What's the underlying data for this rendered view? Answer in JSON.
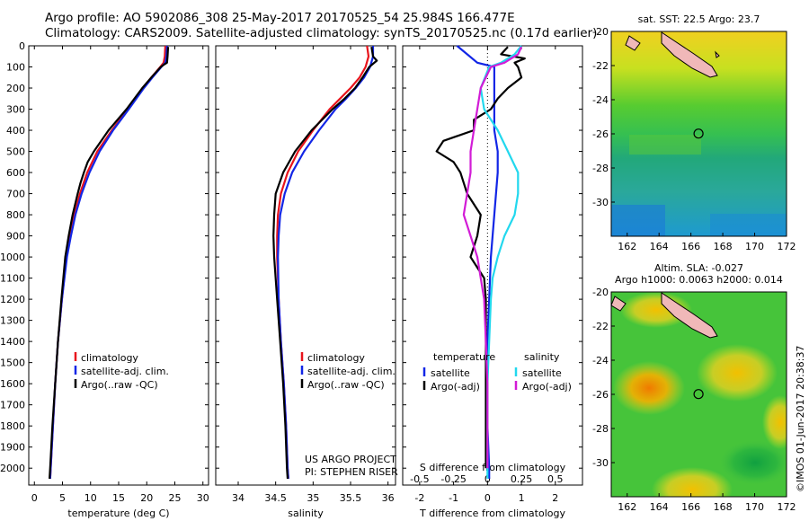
{
  "header": {
    "line1": "Argo profile: AO 5902086_308 25-May-2017 20170525_54 25.984S 166.477E",
    "line2": "Climatology: CARS2009. Satellite-adjusted climatology: synTS_20170525.nc (0.17d earlier)"
  },
  "stamp": "©IMOS 01-Jun-2017 20:38:37",
  "colors": {
    "climatology": "#e8141c",
    "satellite": "#1226e6",
    "argo": "#000000",
    "sat_salinity": "#22d8ee",
    "argo_salinity": "#d21cd6"
  },
  "chart_data": [
    {
      "type": "line",
      "id": "temperature",
      "xlabel": "temperature (deg C)",
      "ylabel": "",
      "xlim": [
        -1,
        31
      ],
      "ylim": [
        2080,
        0
      ],
      "xticks": [
        0,
        5,
        10,
        15,
        20,
        25,
        30
      ],
      "yticks": [
        0,
        100,
        200,
        300,
        400,
        500,
        600,
        700,
        800,
        900,
        1000,
        1100,
        1200,
        1300,
        1400,
        1500,
        1600,
        1700,
        1800,
        1900,
        2000
      ],
      "legend": [
        "climatology",
        "satellite-adj. clim.",
        "Argo(..raw -QC)"
      ],
      "legend_colors": [
        "#e8141c",
        "#1226e6",
        "#000000"
      ],
      "series": [
        {
          "name": "climatology",
          "color": "#e8141c",
          "pressure": [
            0,
            50,
            80,
            100,
            150,
            200,
            300,
            400,
            500,
            600,
            700,
            800,
            900,
            1000,
            1200,
            1400,
            1600,
            1800,
            2000,
            2050
          ],
          "values": [
            23.3,
            23.2,
            23.0,
            22.4,
            20.8,
            19.3,
            16.6,
            13.8,
            11.2,
            9.4,
            8.1,
            7.1,
            6.3,
            5.7,
            4.9,
            4.2,
            3.7,
            3.3,
            2.9,
            2.8
          ]
        },
        {
          "name": "satellite-adj. clim.",
          "color": "#1226e6",
          "pressure": [
            0,
            50,
            80,
            100,
            150,
            200,
            300,
            400,
            500,
            600,
            700,
            800,
            900,
            1000,
            1200,
            1400,
            1600,
            1800,
            2000,
            2050
          ],
          "values": [
            23.6,
            23.5,
            23.3,
            22.6,
            21.0,
            19.5,
            16.8,
            14.0,
            11.6,
            9.8,
            8.4,
            7.3,
            6.5,
            5.8,
            4.9,
            4.2,
            3.7,
            3.3,
            2.9,
            2.8
          ]
        },
        {
          "name": "Argo(..raw -QC)",
          "color": "#000000",
          "pressure": [
            5,
            50,
            80,
            90,
            100,
            150,
            200,
            300,
            400,
            500,
            550,
            600,
            650,
            700,
            800,
            900,
            1000,
            1200,
            1400,
            1600,
            1800,
            2000,
            2050
          ],
          "values": [
            23.8,
            23.7,
            23.6,
            23.0,
            22.5,
            20.8,
            19.2,
            16.4,
            13.2,
            10.6,
            9.5,
            8.8,
            8.2,
            7.7,
            6.8,
            6.1,
            5.5,
            4.8,
            4.2,
            3.7,
            3.2,
            2.8,
            2.7
          ]
        }
      ]
    },
    {
      "type": "line",
      "id": "salinity",
      "xlabel": "salinity",
      "ylabel": "",
      "xlim": [
        33.7,
        36.1
      ],
      "ylim": [
        2080,
        0
      ],
      "xticks": [
        34,
        34.5,
        35,
        35.5,
        36
      ],
      "legend": [
        "climatology",
        "satellite-adj. clim.",
        "Argo(..raw -QC)"
      ],
      "legend_colors": [
        "#e8141c",
        "#1226e6",
        "#000000"
      ],
      "annotation": [
        "US ARGO PROJECT",
        "PI: STEPHEN RISER"
      ],
      "series": [
        {
          "name": "climatology",
          "color": "#e8141c",
          "pressure": [
            0,
            50,
            100,
            150,
            200,
            250,
            300,
            400,
            500,
            600,
            700,
            800,
            900,
            1000,
            1200,
            1400,
            1600,
            1800,
            2000,
            2050
          ],
          "values": [
            35.72,
            35.74,
            35.7,
            35.62,
            35.5,
            35.36,
            35.22,
            35.0,
            34.8,
            34.66,
            34.57,
            34.53,
            34.52,
            34.52,
            34.54,
            34.57,
            34.61,
            34.64,
            34.66,
            34.67
          ]
        },
        {
          "name": "satellite-adj. clim.",
          "color": "#1226e6",
          "pressure": [
            0,
            50,
            100,
            150,
            200,
            250,
            300,
            400,
            500,
            600,
            700,
            800,
            900,
            1000,
            1200,
            1400,
            1600,
            1800,
            2000,
            2050
          ],
          "values": [
            35.8,
            35.8,
            35.76,
            35.68,
            35.57,
            35.44,
            35.3,
            35.08,
            34.88,
            34.72,
            34.62,
            34.56,
            34.54,
            34.53,
            34.54,
            34.57,
            34.61,
            34.64,
            34.66,
            34.67
          ]
        },
        {
          "name": "Argo(..raw -QC)",
          "color": "#000000",
          "pressure": [
            5,
            50,
            70,
            100,
            150,
            200,
            250,
            300,
            400,
            500,
            600,
            700,
            800,
            900,
            1000,
            1200,
            1400,
            1600,
            1800,
            2000,
            2050
          ],
          "values": [
            35.78,
            35.8,
            35.85,
            35.75,
            35.66,
            35.56,
            35.42,
            35.26,
            34.98,
            34.76,
            34.6,
            34.5,
            34.48,
            34.47,
            34.48,
            34.52,
            34.56,
            34.6,
            34.63,
            34.65,
            34.66
          ]
        }
      ]
    },
    {
      "type": "line",
      "id": "difference",
      "xlabel": "T difference from climatology",
      "xlabel2": "S difference from climatology",
      "xlim": [
        -2.5,
        2.8
      ],
      "ylim": [
        2080,
        0
      ],
      "xticks": [
        -2,
        -1,
        0,
        1,
        2
      ],
      "xtick_labels": [
        "-2",
        "-1",
        "0",
        "1",
        "2"
      ],
      "xticks2": [
        -2,
        -1,
        0,
        1,
        2
      ],
      "xtick2_labels": [
        "-0.5",
        "-0.25",
        "0",
        "0.25",
        "0.5"
      ],
      "legend_left_title": "temperature",
      "legend_right_title": "salinity",
      "legend": [
        "satellite",
        "Argo(-adj)",
        "satellite",
        "Argo(-adj)"
      ],
      "legend_colors": [
        "#1226e6",
        "#000000",
        "#22d8ee",
        "#d21cd6"
      ],
      "series": [
        {
          "name": "satellite",
          "color": "#1226e6",
          "pressure": [
            0,
            40,
            80,
            100,
            200,
            300,
            400,
            500,
            600,
            800,
            1000,
            1200,
            1400,
            1600,
            1800,
            2000,
            2050
          ],
          "values": [
            -0.9,
            -0.6,
            -0.3,
            0.2,
            0.2,
            0.2,
            0.2,
            0.3,
            0.3,
            0.2,
            0.1,
            0.05,
            0.0,
            0.0,
            0.0,
            0.05,
            0.05
          ]
        },
        {
          "name": "Argo(-adj)",
          "color": "#000000",
          "pressure": [
            5,
            40,
            60,
            80,
            100,
            150,
            200,
            250,
            300,
            350,
            400,
            450,
            500,
            550,
            600,
            700,
            800,
            900,
            1000,
            1100,
            1200,
            1400,
            1600,
            1800,
            2000
          ],
          "values": [
            0.6,
            0.4,
            1.1,
            0.8,
            0.9,
            1.0,
            0.6,
            0.3,
            0.1,
            -0.4,
            -0.4,
            -1.3,
            -1.5,
            -1.0,
            -0.8,
            -0.6,
            -0.2,
            -0.3,
            -0.5,
            -0.1,
            -0.05,
            -0.05,
            -0.05,
            -0.05,
            -0.05
          ]
        },
        {
          "name": "satellite",
          "color": "#22d8ee",
          "pressure": [
            0,
            40,
            80,
            100,
            200,
            300,
            400,
            500,
            600,
            700,
            800,
            900,
            1000,
            1100,
            1200,
            1400,
            1600,
            1800,
            2000,
            2050
          ],
          "values": [
            1.0,
            0.8,
            0.4,
            0.05,
            -0.2,
            -0.1,
            0.3,
            0.6,
            0.9,
            0.9,
            0.8,
            0.5,
            0.3,
            0.15,
            0.1,
            0.05,
            0.0,
            0.0,
            0.0,
            0.0
          ]
        },
        {
          "name": "Argo(-adj)",
          "color": "#d21cd6",
          "pressure": [
            5,
            40,
            60,
            80,
            100,
            200,
            300,
            400,
            500,
            600,
            700,
            800,
            900,
            1000,
            1100,
            1200,
            1400,
            1600,
            1800,
            2000
          ],
          "values": [
            1.0,
            0.9,
            0.7,
            0.5,
            0.1,
            -0.2,
            -0.3,
            -0.4,
            -0.5,
            -0.5,
            -0.6,
            -0.7,
            -0.5,
            -0.3,
            -0.2,
            -0.1,
            -0.05,
            0.0,
            0.0,
            0.0
          ]
        }
      ]
    },
    {
      "type": "heatmap",
      "id": "sst_map",
      "title": "sat. SST: 22.5 Argo: 23.7",
      "xlim": [
        161,
        172
      ],
      "ylim": [
        -32,
        -20
      ],
      "xticks": [
        162,
        164,
        166,
        168,
        170,
        172
      ],
      "yticks": [
        -20,
        -22,
        -24,
        -26,
        -28,
        -30
      ],
      "marker": {
        "lon": 166.477,
        "lat": -25.984
      }
    },
    {
      "type": "heatmap",
      "id": "sla_map",
      "title": "Altim. SLA: -0.027",
      "subtitle": "Argo h1000: 0.0063 h2000: 0.014",
      "xlim": [
        161,
        172
      ],
      "ylim": [
        -32,
        -20
      ],
      "xticks": [
        162,
        164,
        166,
        168,
        170,
        172
      ],
      "yticks": [
        -20,
        -22,
        -24,
        -26,
        -28,
        -30
      ],
      "marker": {
        "lon": 166.477,
        "lat": -25.984
      }
    }
  ]
}
